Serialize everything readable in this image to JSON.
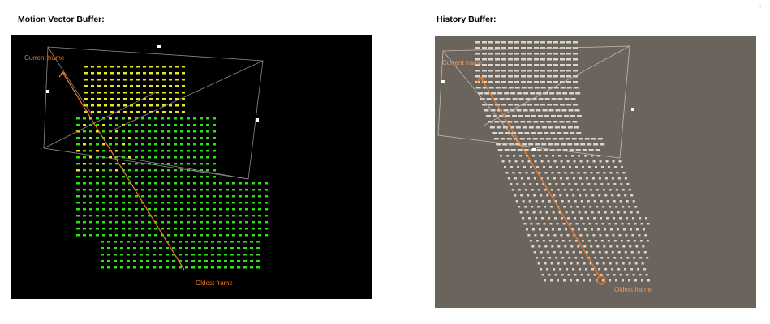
{
  "panels": [
    {
      "title": "Motion Vector Buffer:",
      "label_current": "Current frame",
      "label_oldest": "Oldest frame",
      "background": "#000000",
      "dot_colors": [
        "#e8e61e",
        "#2ee01a"
      ]
    },
    {
      "title": "History Buffer:",
      "label_current": "Current frame",
      "label_oldest": "Oldest frame",
      "background": "#6b645d",
      "dot_colors": [
        "#d9d6d1"
      ]
    }
  ],
  "accent_color": "#f07a1e",
  "corner_mark": "."
}
